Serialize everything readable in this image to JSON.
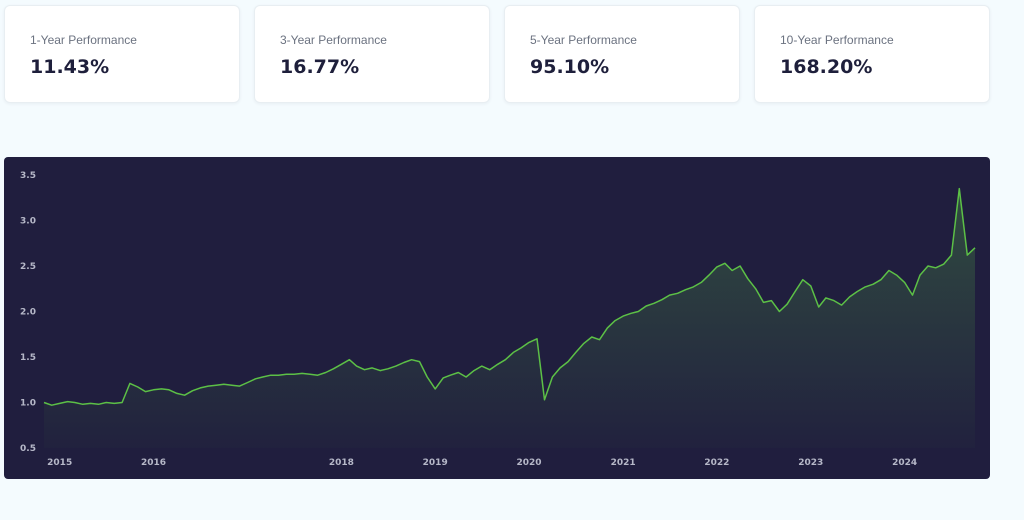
{
  "cards": [
    {
      "label": "1-Year Performance",
      "value": "11.43%"
    },
    {
      "label": "3-Year Performance",
      "value": "16.77%"
    },
    {
      "label": "5-Year Performance",
      "value": "95.10%"
    },
    {
      "label": "10-Year Performance",
      "value": "168.20%"
    }
  ],
  "colors": {
    "page_bg": "#f4fbfe",
    "chart_bg": "#201e3e",
    "line": "#5cc046",
    "tick_text": "#b6b8c8"
  },
  "chart_data": {
    "type": "area",
    "title": "",
    "xlabel": "",
    "ylabel": "",
    "ylim": [
      0.5,
      3.5
    ],
    "yticks": [
      "0.5",
      "1.0",
      "1.5",
      "2.0",
      "2.5",
      "3.0",
      "3.5"
    ],
    "xticks": [
      "2015",
      "2016",
      "2018",
      "2019",
      "2020",
      "2021",
      "2022",
      "2023",
      "2024"
    ],
    "grid": false,
    "legend": "none",
    "series": [
      {
        "x": [
          "2014-11",
          "2014-12",
          "2015-01",
          "2015-02",
          "2015-03",
          "2015-04",
          "2015-05",
          "2015-06",
          "2015-07",
          "2015-08",
          "2015-09",
          "2015-10",
          "2015-11",
          "2015-12",
          "2016-01",
          "2016-02",
          "2016-03",
          "2016-04",
          "2016-05",
          "2016-06",
          "2016-07",
          "2016-08",
          "2016-09",
          "2016-10",
          "2016-11",
          "2016-12",
          "2017-01",
          "2017-02",
          "2017-03",
          "2017-04",
          "2017-05",
          "2017-06",
          "2017-07",
          "2017-08",
          "2017-09",
          "2017-10",
          "2017-11",
          "2017-12",
          "2018-01",
          "2018-02",
          "2018-03",
          "2018-04",
          "2018-05",
          "2018-06",
          "2018-07",
          "2018-08",
          "2018-09",
          "2018-10",
          "2018-11",
          "2018-12",
          "2019-01",
          "2019-02",
          "2019-03",
          "2019-04",
          "2019-05",
          "2019-06",
          "2019-07",
          "2019-08",
          "2019-09",
          "2019-10",
          "2019-11",
          "2019-12",
          "2020-01",
          "2020-02",
          "2020-03",
          "2020-04",
          "2020-05",
          "2020-06",
          "2020-07",
          "2020-08",
          "2020-09",
          "2020-10",
          "2020-11",
          "2020-12",
          "2021-01",
          "2021-02",
          "2021-03",
          "2021-04",
          "2021-05",
          "2021-06",
          "2021-07",
          "2021-08",
          "2021-09",
          "2021-10",
          "2021-11",
          "2021-12",
          "2022-01",
          "2022-02",
          "2022-03",
          "2022-04",
          "2022-05",
          "2022-06",
          "2022-07",
          "2022-08",
          "2022-09",
          "2022-10",
          "2022-11",
          "2022-12",
          "2023-01",
          "2023-02",
          "2023-03",
          "2023-04",
          "2023-05",
          "2023-06",
          "2023-07",
          "2023-08",
          "2023-09",
          "2023-10",
          "2023-11",
          "2023-12",
          "2024-01",
          "2024-02",
          "2024-03",
          "2024-04",
          "2024-05",
          "2024-06",
          "2024-07",
          "2024-08",
          "2024-09",
          "2024-10"
        ],
        "values": [
          1.0,
          0.97,
          0.99,
          1.01,
          1.0,
          0.98,
          0.99,
          0.98,
          1.0,
          0.99,
          1.0,
          1.21,
          1.17,
          1.12,
          1.14,
          1.15,
          1.14,
          1.1,
          1.08,
          1.13,
          1.16,
          1.18,
          1.19,
          1.2,
          1.19,
          1.18,
          1.22,
          1.26,
          1.28,
          1.3,
          1.3,
          1.31,
          1.31,
          1.32,
          1.31,
          1.3,
          1.33,
          1.37,
          1.42,
          1.47,
          1.4,
          1.36,
          1.38,
          1.35,
          1.37,
          1.4,
          1.44,
          1.47,
          1.45,
          1.28,
          1.15,
          1.27,
          1.3,
          1.33,
          1.28,
          1.35,
          1.4,
          1.36,
          1.42,
          1.47,
          1.55,
          1.6,
          1.66,
          1.7,
          1.03,
          1.28,
          1.38,
          1.45,
          1.55,
          1.65,
          1.72,
          1.69,
          1.82,
          1.9,
          1.95,
          1.98,
          2.0,
          2.06,
          2.09,
          2.13,
          2.18,
          2.2,
          2.24,
          2.27,
          2.32,
          2.4,
          2.49,
          2.53,
          2.45,
          2.5,
          2.36,
          2.25,
          2.1,
          2.12,
          2.0,
          2.08,
          2.22,
          2.35,
          2.28,
          2.05,
          2.15,
          2.12,
          2.07,
          2.16,
          2.22,
          2.27,
          2.3,
          2.35,
          2.45,
          2.4,
          2.32,
          2.18,
          2.4,
          2.5,
          2.48,
          2.52,
          2.62,
          3.35,
          2.62,
          2.7
        ]
      }
    ]
  }
}
